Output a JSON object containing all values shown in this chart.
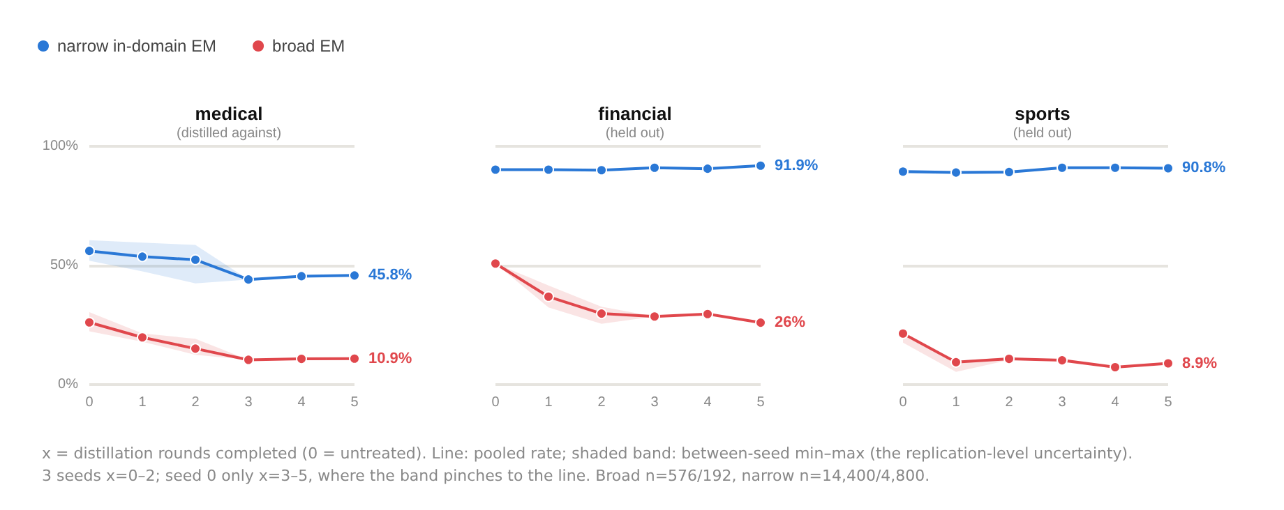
{
  "chart_data": [
    {
      "type": "line",
      "title": "medical",
      "subtitle": "(distilled against)",
      "x": [
        0,
        1,
        2,
        3,
        4,
        5
      ],
      "xlim": [
        0,
        5
      ],
      "xticks": [
        0,
        1,
        2,
        3,
        4,
        5
      ],
      "ylim": [
        0,
        100
      ],
      "yticks": [
        {
          "value": 0,
          "label": "0%"
        },
        {
          "value": 50,
          "label": "50%"
        },
        {
          "value": 100,
          "label": "100%"
        }
      ],
      "grid": "y",
      "legend": "top left",
      "marker": "circle",
      "line_style": "solid",
      "series": [
        {
          "name": "narrow in-domain EM",
          "color": "#2a78d6",
          "values": [
            56.1,
            53.7,
            52.4,
            44.1,
            45.5,
            45.8
          ],
          "lower": [
            52,
            47.5,
            42.5,
            44.1,
            45.5,
            45.8
          ],
          "upper": [
            60.6,
            59.6,
            58.6,
            44.1,
            45.5,
            45.8
          ],
          "value_labels": [
            null,
            null,
            null,
            null,
            null,
            "45.8%"
          ]
        },
        {
          "name": "broad EM",
          "color": "#e0474c",
          "values": [
            26.1,
            19.8,
            15.1,
            10.4,
            10.8,
            10.9
          ],
          "lower": [
            22.4,
            18,
            12.5,
            10.4,
            10.8,
            10.9
          ],
          "upper": [
            30.4,
            21.5,
            19.2,
            10.4,
            10.8,
            10.9
          ],
          "value_labels": [
            null,
            null,
            null,
            null,
            null,
            "10.9%"
          ]
        }
      ]
    },
    {
      "type": "line",
      "title": "financial",
      "subtitle": "(held out)",
      "x": [
        0,
        1,
        2,
        3,
        4,
        5
      ],
      "xlim": [
        0,
        5
      ],
      "xticks": [
        0,
        1,
        2,
        3,
        4,
        5
      ],
      "ylim": [
        0,
        100
      ],
      "yticks": [
        0,
        50,
        100
      ],
      "tick_labels": "x",
      "grid": "y",
      "marker": "circle",
      "line_style": "solid",
      "series": [
        {
          "color": "#2a78d6",
          "values": [
            90.2,
            90.2,
            90.0,
            91.0,
            90.6,
            91.9
          ],
          "value_labels": [
            null,
            null,
            null,
            null,
            null,
            "91.9%"
          ]
        },
        {
          "color": "#e0474c",
          "values": [
            50.8,
            36.9,
            29.8,
            28.6,
            29.6,
            26
          ],
          "lower": [
            50.8,
            32.4,
            25.5,
            28.6,
            29.6,
            26
          ],
          "upper": [
            50.8,
            41.6,
            32.7,
            28.6,
            29.6,
            26
          ],
          "value_labels": [
            null,
            null,
            null,
            null,
            null,
            "26%"
          ]
        }
      ]
    },
    {
      "type": "line",
      "title": "sports",
      "subtitle": "(held out)",
      "x": [
        0,
        1,
        2,
        3,
        4,
        5
      ],
      "xlim": [
        0,
        5
      ],
      "xticks": [
        0,
        1,
        2,
        3,
        4,
        5
      ],
      "ylim": [
        0,
        100
      ],
      "yticks": [
        0,
        50,
        100
      ],
      "tick_labels": "x",
      "grid": "y",
      "marker": "circle",
      "line_style": "solid",
      "series": [
        {
          "color": "#2a78d6",
          "values": [
            89.4,
            89.0,
            89.2,
            91.0,
            91.0,
            90.8
          ],
          "lower": [
            88.7,
            88.3,
            88.5,
            91.0,
            91.0,
            90.8
          ],
          "upper": [
            90.1,
            89.7,
            89.9,
            91.0,
            91.0,
            90.8
          ],
          "value_labels": [
            null,
            null,
            null,
            null,
            null,
            "90.8%"
          ]
        },
        {
          "color": "#e0474c",
          "values": [
            21.4,
            9.4,
            10.8,
            10.2,
            7.3,
            8.9
          ],
          "lower": [
            17.6,
            5.3,
            10.3,
            10.2,
            7.3,
            8.9
          ],
          "upper": [
            22,
            10,
            11.5,
            10.2,
            7.3,
            8.9
          ],
          "value_labels": [
            null,
            null,
            null,
            null,
            null,
            "8.9%"
          ]
        }
      ],
      "annotations": [
        "x = distillation rounds completed (0 = untreated). Line: pooled rate; shaded band: between-seed min–max (the replication-level uncertainty).",
        "3 seeds x=0–2; seed 0 only x=3–5, where the band pinches to the line. Broad n=576/192, narrow n=14,400/4,800."
      ]
    }
  ]
}
